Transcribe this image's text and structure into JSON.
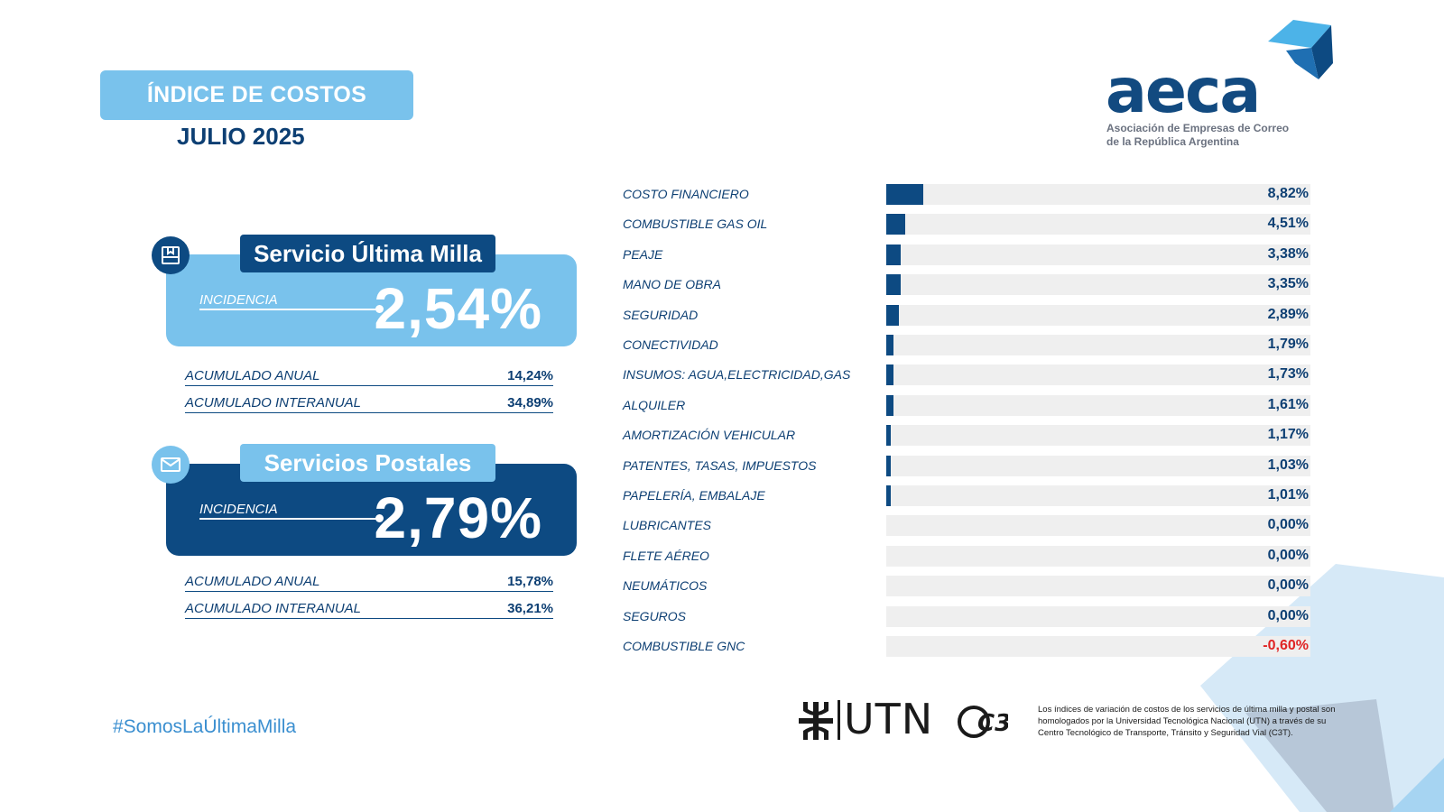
{
  "header": {
    "title": "ÍNDICE DE COSTOS",
    "subtitle": "JULIO 2025"
  },
  "logo": {
    "word": "aeca",
    "line1": "Asociación de Empresas de Correo",
    "line2": "de la República Argentina"
  },
  "services": [
    {
      "name": "Servicio Última Milla",
      "icon": "box-icon",
      "incidence_label": "INCIDENCIA",
      "incidence_value": "2,54%",
      "accumulated": [
        {
          "label": "ACUMULADO ANUAL",
          "value": "14,24%"
        },
        {
          "label": "ACUMULADO INTERANUAL",
          "value": "34,89%"
        }
      ]
    },
    {
      "name": "Servicios Postales",
      "icon": "envelope-icon",
      "incidence_label": "INCIDENCIA",
      "incidence_value": "2,79%",
      "accumulated": [
        {
          "label": "ACUMULADO ANUAL",
          "value": "15,78%"
        },
        {
          "label": "ACUMULADO INTERANUAL",
          "value": "36,21%"
        }
      ]
    }
  ],
  "hashtag": "#SomosLaÚltimaMilla",
  "footer": {
    "utn_text": "UTN",
    "c3t": "C3T",
    "note": "Los índices de variación de costos de los servicios de última milla y postal son homologados por la Universidad Tecnológica Nacional (UTN) a través de su Centro Tecnológico de Transporte, Tránsito y Seguridad Vial (C3T)."
  },
  "colors": {
    "navy": "#0d4a82",
    "light_blue": "#79c2ec",
    "negative": "#e02424",
    "track": "#efefef"
  },
  "chart_data": {
    "type": "bar",
    "orientation": "horizontal",
    "categories": [
      "COSTO FINANCIERO",
      "COMBUSTIBLE GAS OIL",
      "PEAJE",
      "MANO DE OBRA",
      "SEGURIDAD",
      "CONECTIVIDAD",
      "INSUMOS: AGUA,ELECTRICIDAD,GAS",
      "ALQUILER",
      "AMORTIZACIÓN VEHICULAR",
      "PATENTES, TASAS, IMPUESTOS",
      "PAPELERÍA, EMBALAJE",
      "LUBRICANTES",
      "FLETE AÉREO",
      "NEUMÁTICOS",
      "SEGUROS",
      "COMBUSTIBLE GNC"
    ],
    "values": [
      8.82,
      4.51,
      3.38,
      3.35,
      2.89,
      1.79,
      1.73,
      1.61,
      1.17,
      1.03,
      1.01,
      0.0,
      0.0,
      0.0,
      0.0,
      -0.6
    ],
    "value_labels": [
      "8,82%",
      "4,51%",
      "3,38%",
      "3,35%",
      "2,89%",
      "1,79%",
      "1,73%",
      "1,61%",
      "1,17%",
      "1,03%",
      "1,01%",
      "0,00%",
      "0,00%",
      "0,00%",
      "0,00%",
      "-0,60%"
    ],
    "xlim": [
      0,
      100
    ],
    "grid": false,
    "title": "",
    "xlabel": "",
    "ylabel": ""
  }
}
